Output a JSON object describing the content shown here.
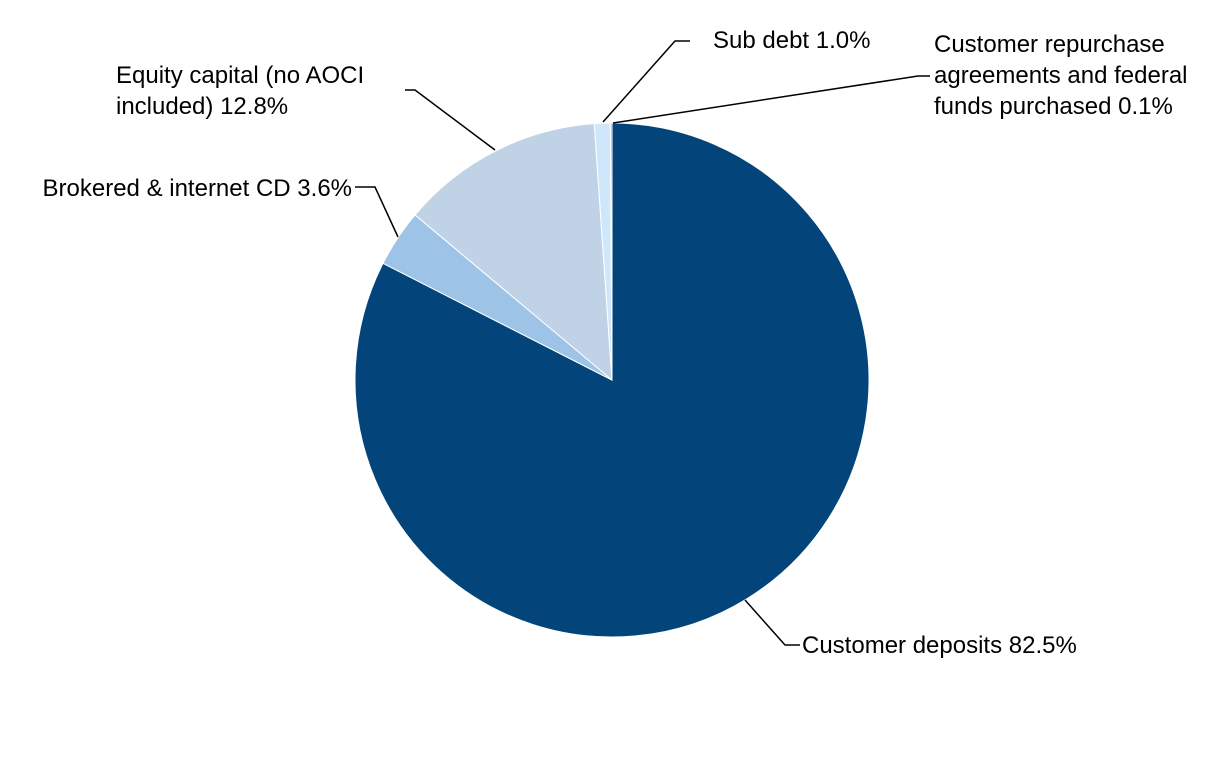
{
  "chart_data": {
    "type": "pie",
    "categories": [
      "Customer deposits",
      "Brokered & internet CD",
      "Equity capital (no AOCI included)",
      "Sub debt",
      "Customer repurchase agreements and federal funds purchased"
    ],
    "values": [
      82.5,
      3.6,
      12.8,
      1.0,
      0.1
    ],
    "value_labels": [
      "82.5%",
      "3.6%",
      "12.8%",
      "1.0%",
      "0.1%"
    ],
    "colors": [
      "#03457a",
      "#9dc3e6",
      "#c0d3e6",
      "#cfe7fb",
      "#5aa8e8"
    ]
  }
}
